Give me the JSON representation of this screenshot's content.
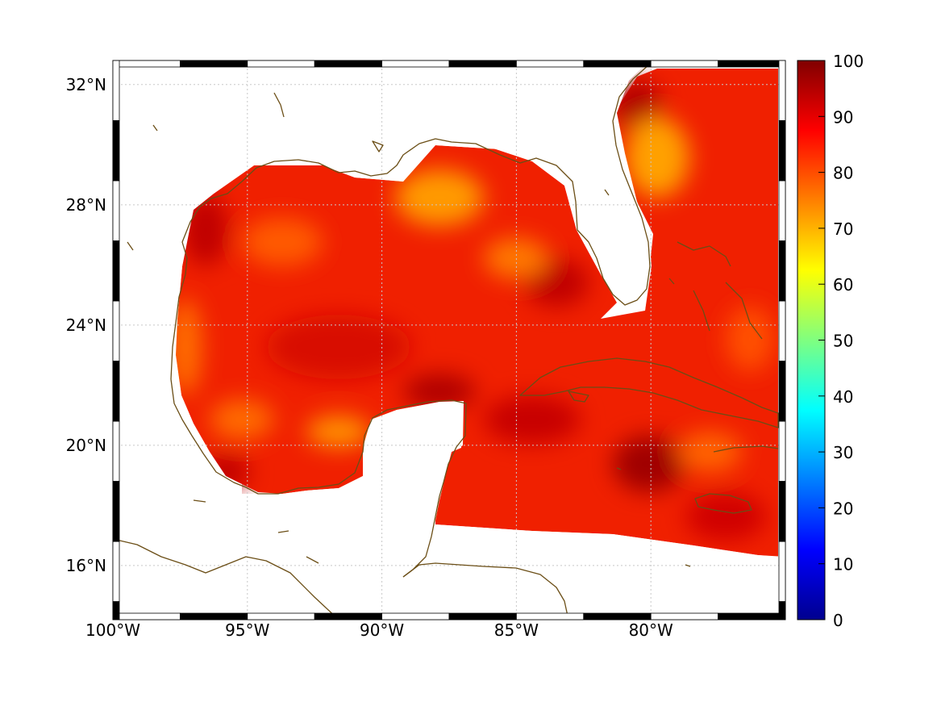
{
  "chart_data": {
    "type": "heatmap",
    "title": "",
    "xlabel": "",
    "ylabel": "",
    "x_range": [
      -100,
      -75
    ],
    "y_range": [
      14.2,
      32.8
    ],
    "x_ticks": [
      {
        "value": -100,
        "label": "100°W"
      },
      {
        "value": -95,
        "label": "95°W"
      },
      {
        "value": -90,
        "label": "90°W"
      },
      {
        "value": -85,
        "label": "85°W"
      },
      {
        "value": -80,
        "label": "80°W"
      }
    ],
    "y_ticks": [
      {
        "value": 16,
        "label": "16°N"
      },
      {
        "value": 20,
        "label": "20°N"
      },
      {
        "value": 24,
        "label": "24°N"
      },
      {
        "value": 28,
        "label": "28°N"
      },
      {
        "value": 32,
        "label": "32°N"
      }
    ],
    "colorbar": {
      "range": [
        0,
        100
      ],
      "colormap": "jet",
      "ticks": [
        "0",
        "10",
        "20",
        "30",
        "40",
        "50",
        "60",
        "70",
        "80",
        "90",
        "100"
      ]
    },
    "field_summary": {
      "typical_value": 85,
      "min_over_ocean": 72,
      "max_over_ocean": 98,
      "hotspots": [
        {
          "lon": -80.3,
          "lat": 19.6,
          "value": 97
        },
        {
          "lon": -88.0,
          "lat": 22.2,
          "value": 95
        },
        {
          "lon": -79.5,
          "lat": 31.6,
          "value": 96
        },
        {
          "lon": -84.5,
          "lat": 25.8,
          "value": 94
        },
        {
          "lon": -96.5,
          "lat": 27.8,
          "value": 93
        }
      ],
      "coolspots": [
        {
          "lon": -79.5,
          "lat": 30.0,
          "value": 75
        },
        {
          "lon": -88.5,
          "lat": 28.6,
          "value": 76
        },
        {
          "lon": -91.0,
          "lat": 20.8,
          "value": 76
        },
        {
          "lon": -97.5,
          "lat": 24.0,
          "value": 80
        }
      ]
    },
    "colors": {
      "coastline": "#6b4e16",
      "land": "#ffffff",
      "grid": "#c8c8c8"
    }
  }
}
